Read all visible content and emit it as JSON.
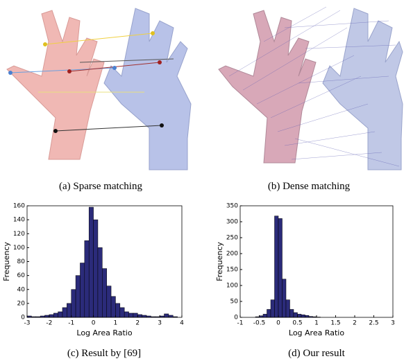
{
  "figure": {
    "captions": [
      "(a) Sparse matching",
      "(b) Dense matching",
      "(c) Result by [69]",
      "(d) Our result"
    ]
  },
  "chart_data": [
    {
      "type": "histogram",
      "xlabel": "Log Area Ratio",
      "ylabel": "Frequency",
      "color": "#2b2b7a",
      "bins": [
        -3,
        -2.8,
        -2.6,
        -2.4,
        -2.2,
        -2,
        -1.8,
        -1.6,
        -1.4,
        -1.2,
        -1,
        -0.8,
        -0.6,
        -0.4,
        -0.2,
        0,
        0.2,
        0.4,
        0.6,
        0.8,
        1,
        1.2,
        1.4,
        1.6,
        1.8,
        2,
        2.2,
        2.4,
        2.6,
        2.8,
        3,
        3.2,
        3.4,
        3.6,
        3.8,
        4
      ],
      "values": [
        2,
        1,
        1,
        2,
        3,
        4,
        6,
        8,
        14,
        20,
        40,
        60,
        78,
        110,
        158,
        140,
        100,
        70,
        45,
        30,
        20,
        14,
        8,
        6,
        6,
        4,
        3,
        2,
        1,
        1,
        2,
        5,
        3,
        1,
        0
      ],
      "xlim": [
        -3,
        4
      ],
      "xticks": [
        -3,
        -2,
        -1,
        0,
        1,
        2,
        3,
        4
      ],
      "ylim": [
        0,
        160
      ],
      "yticks": [
        0,
        20,
        40,
        60,
        80,
        100,
        120,
        140,
        160
      ]
    },
    {
      "type": "histogram",
      "xlabel": "Log Area Ratio",
      "ylabel": "Frequency",
      "color": "#2b2b7a",
      "bins": [
        -1,
        -0.9,
        -0.8,
        -0.7,
        -0.6,
        -0.5,
        -0.4,
        -0.3,
        -0.2,
        -0.1,
        0,
        0.1,
        0.2,
        0.3,
        0.4,
        0.5,
        0.6,
        0.7,
        0.8,
        0.9,
        1,
        1.1,
        1.2,
        1.3,
        1.4,
        1.5,
        1.6,
        1.7,
        1.8,
        1.9,
        2,
        2.1,
        2.2,
        2.3,
        2.4,
        2.5,
        2.6,
        2.7,
        2.8,
        2.9,
        3
      ],
      "values": [
        0,
        0,
        0,
        0,
        2,
        5,
        10,
        25,
        55,
        318,
        310,
        120,
        55,
        25,
        15,
        10,
        8,
        6,
        3,
        2,
        1,
        0,
        0,
        0,
        0,
        0,
        0,
        0,
        0,
        0,
        0,
        0,
        0,
        0,
        0,
        0,
        0,
        0,
        0,
        0
      ],
      "xlim": [
        -1,
        3
      ],
      "xticks": [
        -1,
        -0.5,
        0,
        0.5,
        1,
        1.5,
        2,
        2.5,
        3
      ],
      "ylim": [
        0,
        350
      ],
      "yticks": [
        0,
        50,
        100,
        150,
        200,
        250,
        300,
        350
      ]
    }
  ]
}
